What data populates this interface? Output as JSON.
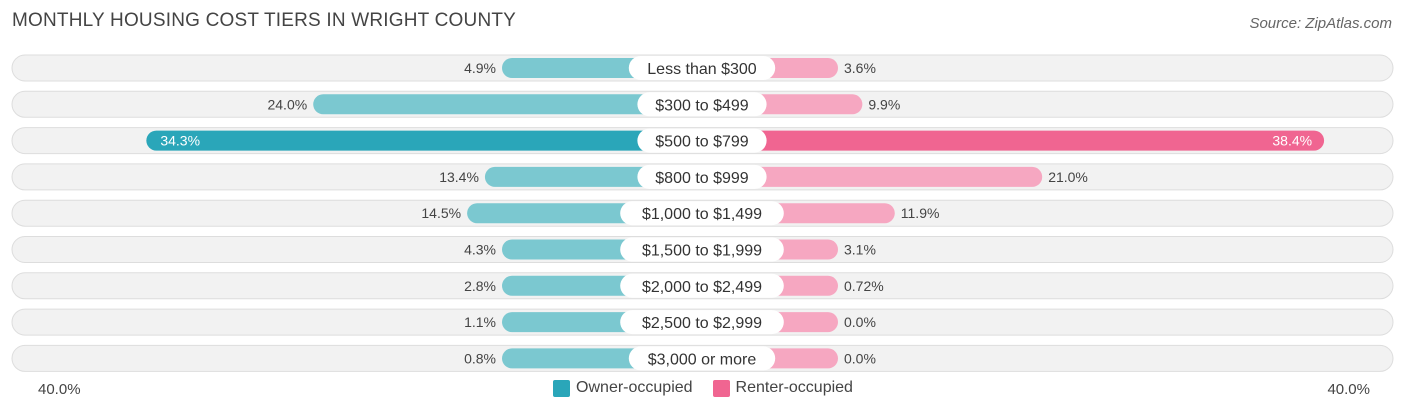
{
  "title": "MONTHLY HOUSING COST TIERS IN WRIGHT COUNTY",
  "source": "Source: ZipAtlas.com",
  "colors": {
    "owner": "#7bc8d0",
    "owner_strong": "#2aa6b9",
    "renter": "#f6a7c1",
    "renter_strong": "#f06591",
    "row_bg": "#f2f2f2",
    "row_border": "#dddddd"
  },
  "chart_data": {
    "type": "bar",
    "orientation": "horizontal-diverging",
    "axis_min_label": "40.0%",
    "axis_max_label": "40.0%",
    "xlim": [
      -40,
      40
    ],
    "categories": [
      "Less than $300",
      "$300 to $499",
      "$500 to $799",
      "$800 to $999",
      "$1,000 to $1,499",
      "$1,500 to $1,999",
      "$2,000 to $2,499",
      "$2,500 to $2,999",
      "$3,000 or more"
    ],
    "series": [
      {
        "name": "Owner-occupied",
        "values": [
          4.9,
          24.0,
          34.3,
          13.4,
          14.5,
          4.3,
          2.8,
          1.1,
          0.8
        ],
        "labels": [
          "4.9%",
          "24.0%",
          "34.3%",
          "13.4%",
          "14.5%",
          "4.3%",
          "2.8%",
          "1.1%",
          "0.8%"
        ]
      },
      {
        "name": "Renter-occupied",
        "values": [
          3.6,
          9.9,
          38.4,
          21.0,
          11.9,
          3.1,
          0.72,
          0.0,
          0.0
        ],
        "labels": [
          "3.6%",
          "9.9%",
          "38.4%",
          "21.0%",
          "11.9%",
          "3.1%",
          "0.72%",
          "0.0%",
          "0.0%"
        ]
      }
    ],
    "legend": "bottom-center"
  }
}
